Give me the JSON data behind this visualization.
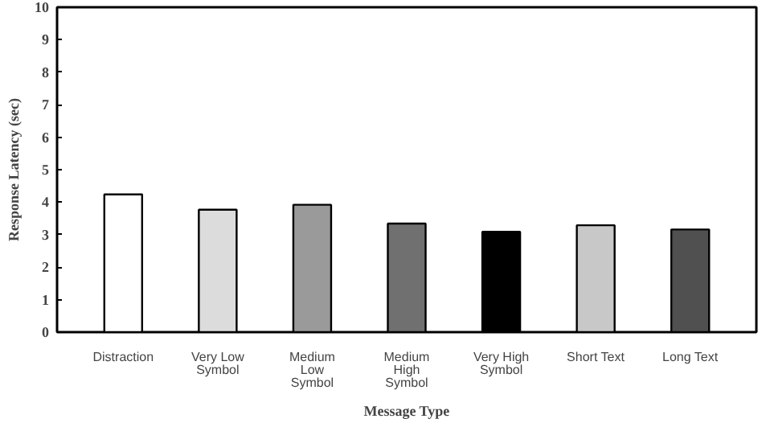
{
  "chart_data": {
    "type": "bar",
    "xlabel": "Message Type",
    "ylabel": "Response Latency (sec)",
    "categories": [
      "Distraction",
      "Very Low\nSymbol",
      "Medium\nLow\nSymbol",
      "Medium\nHigh\nSymbol",
      "Very High\nSymbol",
      "Short Text",
      "Long Text"
    ],
    "values": [
      4.24,
      3.77,
      3.92,
      3.34,
      3.09,
      3.29,
      3.16
    ],
    "colors": [
      "#ffffff",
      "#dcdcdc",
      "#9a9a9a",
      "#707070",
      "#000000",
      "#c8c8c8",
      "#505050"
    ],
    "ylim": [
      0,
      10
    ],
    "yticks": [
      0,
      1,
      2,
      3,
      4,
      5,
      6,
      7,
      8,
      9,
      10
    ],
    "grid": false
  }
}
